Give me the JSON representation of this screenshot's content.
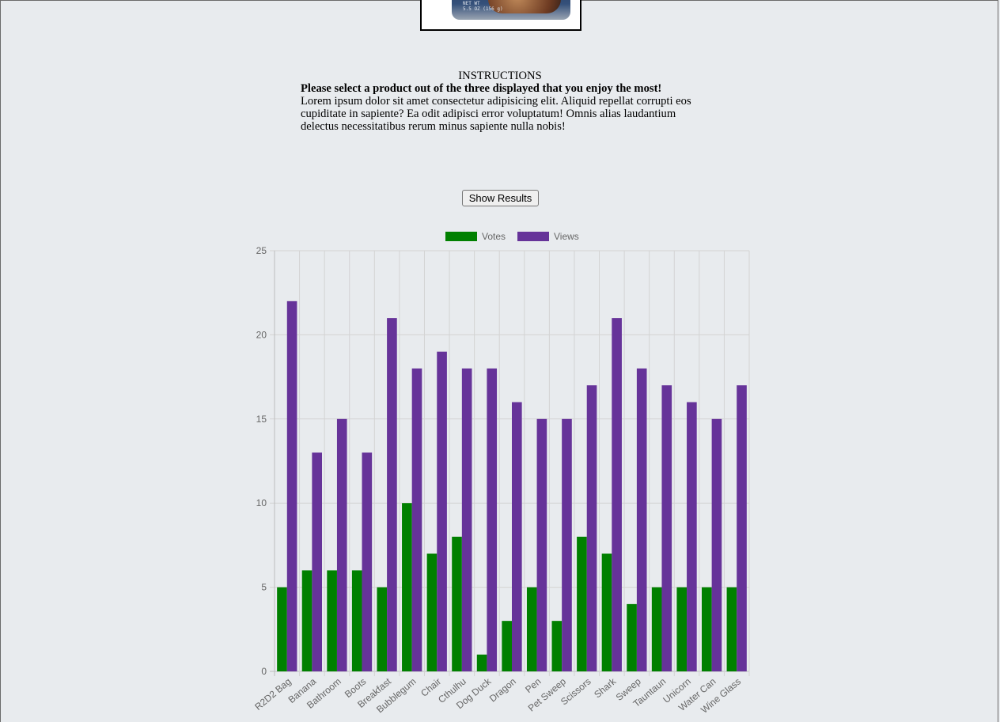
{
  "product_image": {
    "label_line1": "NET WT",
    "label_line2": "5.5 OZ (156 g)"
  },
  "instructions": {
    "title": "INSTRUCTIONS",
    "subtitle": "Please select a product out of the three displayed that you enjoy the most!",
    "body": "Lorem ipsum dolor sit amet consectetur adipisicing elit. Aliquid repellat corrupti eos cupiditate in sapiente? Ea odit adipisci error voluptatum! Omnis alias laudantium delectus necessitatibus rerum minus sapiente nulla nobis!"
  },
  "show_results_label": "Show Results",
  "chart_data": {
    "type": "bar",
    "categories": [
      "R2D2 Bag",
      "Banana",
      "Bathroom",
      "Boots",
      "Breakfast",
      "Bubblegum",
      "Chair",
      "Cthulhu",
      "Dog Duck",
      "Dragon",
      "Pen",
      "Pet Sweep",
      "Scissors",
      "Shark",
      "Sweep",
      "Tauntaun",
      "Unicorn",
      "Water Can",
      "Wine Glass"
    ],
    "series": [
      {
        "name": "Votes",
        "color": "#008000",
        "values": [
          5,
          6,
          6,
          6,
          5,
          10,
          7,
          8,
          1,
          3,
          5,
          3,
          8,
          7,
          4,
          5,
          5,
          5,
          5
        ]
      },
      {
        "name": "Views",
        "color": "#663399",
        "values": [
          22,
          13,
          15,
          13,
          21,
          18,
          19,
          18,
          18,
          16,
          15,
          15,
          17,
          21,
          18,
          17,
          16,
          15,
          17
        ]
      }
    ],
    "yticks": [
      0,
      5,
      10,
      15,
      20,
      25
    ],
    "ylim": [
      0,
      25
    ],
    "grid": true,
    "legend_position": "top"
  }
}
